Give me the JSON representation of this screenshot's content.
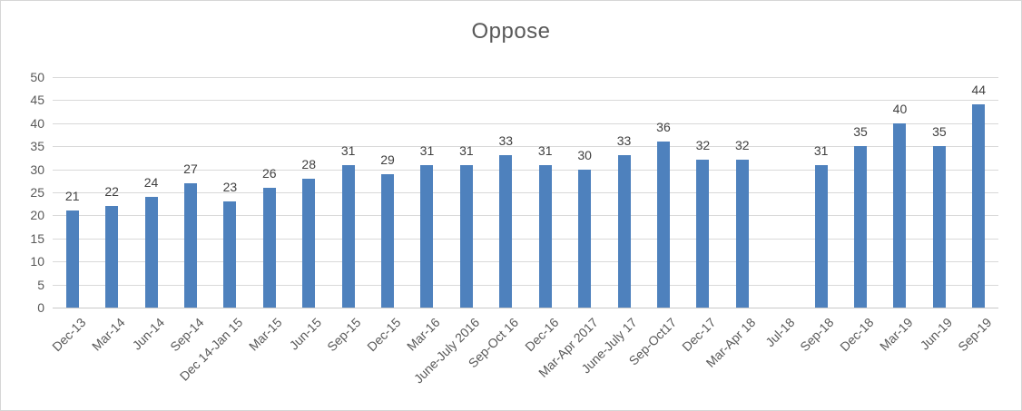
{
  "chart_data": {
    "type": "bar",
    "title": "Oppose",
    "categories": [
      "Dec-13",
      "Mar-14",
      "Jun-14",
      "Sep-14",
      "Dec 14-Jan 15",
      "Mar-15",
      "Jun-15",
      "Sep-15",
      "Dec-15",
      "Mar-16",
      "June-July 2016",
      "Sep-Oct 16",
      "Dec-16",
      "Mar-Apr 2017",
      "June-July 17",
      "Sep-Oct17",
      "Dec-17",
      "Mar-Apr 18",
      "Jul-18",
      "Sep-18",
      "Dec-18",
      "Mar-19",
      "Jun-19",
      "Sep-19"
    ],
    "values": [
      21,
      22,
      24,
      27,
      23,
      26,
      28,
      31,
      29,
      31,
      31,
      33,
      31,
      30,
      33,
      36,
      32,
      32,
      null,
      31,
      35,
      40,
      35,
      44
    ],
    "xlabel": "",
    "ylabel": "",
    "ylim": [
      0,
      50
    ],
    "yticks": [
      0,
      5,
      10,
      15,
      20,
      25,
      30,
      35,
      40,
      45,
      50
    ],
    "grid": "horizontal",
    "legend": "none",
    "data_labels": true,
    "bar_color": "#4E81BD"
  },
  "colors": {
    "bar": "#4E81BD",
    "gridline": "#D9D9D9",
    "axis_line": "#C9C9C9",
    "title_text": "#595959",
    "axis_text": "#595959",
    "data_label_text": "#404040",
    "background": "#FFFFFF",
    "border": "#D6D6D6"
  }
}
